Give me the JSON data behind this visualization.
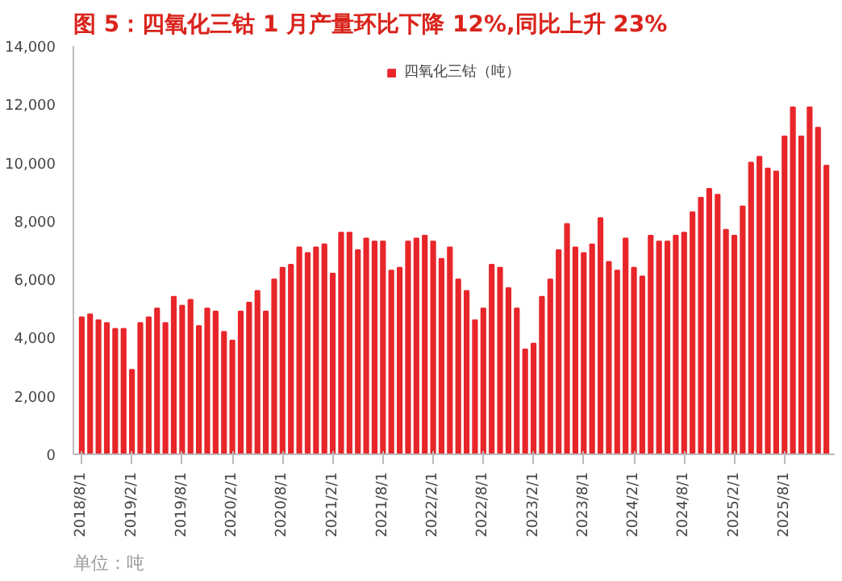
{
  "chart_data": {
    "type": "bar",
    "title": "图 5：四氧化三钴 1 月产量环比下降 12%,同比上升 23%",
    "categories": [
      "2018/8/1",
      null,
      null,
      null,
      null,
      null,
      "2019/2/1",
      null,
      null,
      null,
      null,
      null,
      "2019/8/1",
      null,
      null,
      null,
      null,
      null,
      "2020/2/1",
      null,
      null,
      null,
      null,
      null,
      "2020/8/1",
      null,
      null,
      null,
      null,
      null,
      "2021/2/1",
      null,
      null,
      null,
      null,
      null,
      "2021/8/1",
      null,
      null,
      null,
      null,
      null,
      "2022/2/1",
      null,
      null,
      null,
      null,
      null,
      "2022/8/1",
      null,
      null,
      null,
      null,
      null,
      "2023/2/1",
      null,
      null,
      null,
      null,
      null,
      "2023/8/1",
      null,
      null,
      null,
      null,
      null,
      "2024/2/1",
      null,
      null,
      null,
      null,
      null,
      "2024/8/1",
      null,
      null,
      null,
      null,
      null,
      "2025/2/1",
      null,
      null,
      null,
      null,
      null,
      "2025/8/1",
      null,
      null,
      null,
      null,
      null
    ],
    "series": [
      {
        "name": "四氧化三钴（吨）",
        "color": "#e8262a",
        "values": [
          4700,
          4800,
          4600,
          4500,
          4300,
          4300,
          2900,
          4500,
          4700,
          5000,
          4500,
          5400,
          5100,
          5300,
          4400,
          5000,
          4900,
          4200,
          3900,
          4900,
          5200,
          5600,
          4900,
          6000,
          6400,
          6500,
          7100,
          6900,
          7100,
          7200,
          6200,
          7600,
          7600,
          7000,
          7400,
          7300,
          7300,
          6300,
          6400,
          7300,
          7400,
          7500,
          7300,
          6700,
          7100,
          6000,
          5600,
          4600,
          5000,
          6500,
          6400,
          5700,
          5000,
          3600,
          3800,
          5400,
          6000,
          7000,
          7900,
          7100,
          6900,
          7200,
          8100,
          6600,
          6300,
          7400,
          6400,
          6100,
          7500,
          7300,
          7300,
          7500,
          7600,
          8300,
          8800,
          9100,
          8900,
          7700,
          7500,
          8500,
          10000,
          10200,
          9800,
          9700,
          10900,
          11900,
          10900,
          11900,
          11200,
          9900
        ]
      }
    ],
    "ylim": [
      0,
      14000
    ],
    "yticks": [
      0,
      {
        "value": 2000,
        "label": "2,000"
      },
      {
        "value": 4000,
        "label": "4,000"
      },
      {
        "value": 6000,
        "label": "6,000"
      },
      {
        "value": 8000,
        "label": "8,000"
      },
      {
        "value": 10000,
        "label": "10,000"
      },
      {
        "value": 12000,
        "label": "12,000"
      },
      {
        "value": 14000,
        "label": "14,000"
      }
    ],
    "grid": false,
    "legend": "top",
    "annotations": [
      "单位：吨"
    ]
  }
}
